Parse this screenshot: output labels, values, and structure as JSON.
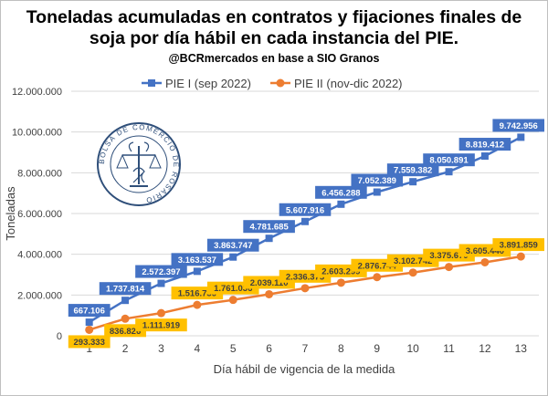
{
  "title_line1": "Toneladas acumuladas en contratos y fijaciones finales de",
  "title_line2": "soja por día hábil en cada instancia del PIE.",
  "subtitle": "@BCRmercados en base a SIO Granos",
  "seal_text": "BOLSA DE COMERCIO DE ROSARIO",
  "colors": {
    "pie1": "#4472C4",
    "pie2": "#ED7D31",
    "label_pie1_bg": "#4472C4",
    "label_pie2_bg": "#FFC000",
    "grid": "#d9d9d9"
  },
  "chart_data": {
    "type": "line",
    "title": "Toneladas acumuladas en contratos y fijaciones finales de soja por día hábil en cada instancia del PIE.",
    "xlabel": "Día hábil de vigencia de la medida",
    "ylabel": "Toneladas",
    "ylim": [
      0,
      12000000
    ],
    "yticks": [
      "0",
      "2.000.000",
      "4.000.000",
      "6.000.000",
      "8.000.000",
      "10.000.000",
      "12.000.000"
    ],
    "x": [
      1,
      2,
      3,
      4,
      5,
      6,
      7,
      8,
      9,
      10,
      11,
      12,
      13
    ],
    "grid": true,
    "legend_position": "top",
    "series": [
      {
        "name": "PIE I (sep 2022)",
        "values": [
          667106,
          1737814,
          2572397,
          3163537,
          3863747,
          4781685,
          5607916,
          6456288,
          7052389,
          7559382,
          8050891,
          8819412,
          9742956
        ],
        "labels": [
          "667.106",
          "1.737.814",
          "2.572.397",
          "3.163.537",
          "3.863.747",
          "4.781.685",
          "5.607.916",
          "6.456.288",
          "7.052.389",
          "7.559.382",
          "8.050.891",
          "8.819.412",
          "9.742.956"
        ]
      },
      {
        "name": "PIE II (nov-dic 2022)",
        "values": [
          293333,
          836826,
          1111919,
          1516736,
          1761036,
          2039110,
          2336375,
          2603299,
          2876744,
          3102742,
          3375679,
          3605440,
          3891859
        ],
        "labels": [
          "293.333",
          "836.826",
          "1.111.919",
          "1.516.736",
          "1.761.036",
          "2.039.110",
          "2.336.375",
          "2.603.299",
          "2.876.744",
          "3.102.742",
          "3.375.679",
          "3.605.440",
          "3.891.859"
        ]
      }
    ]
  }
}
